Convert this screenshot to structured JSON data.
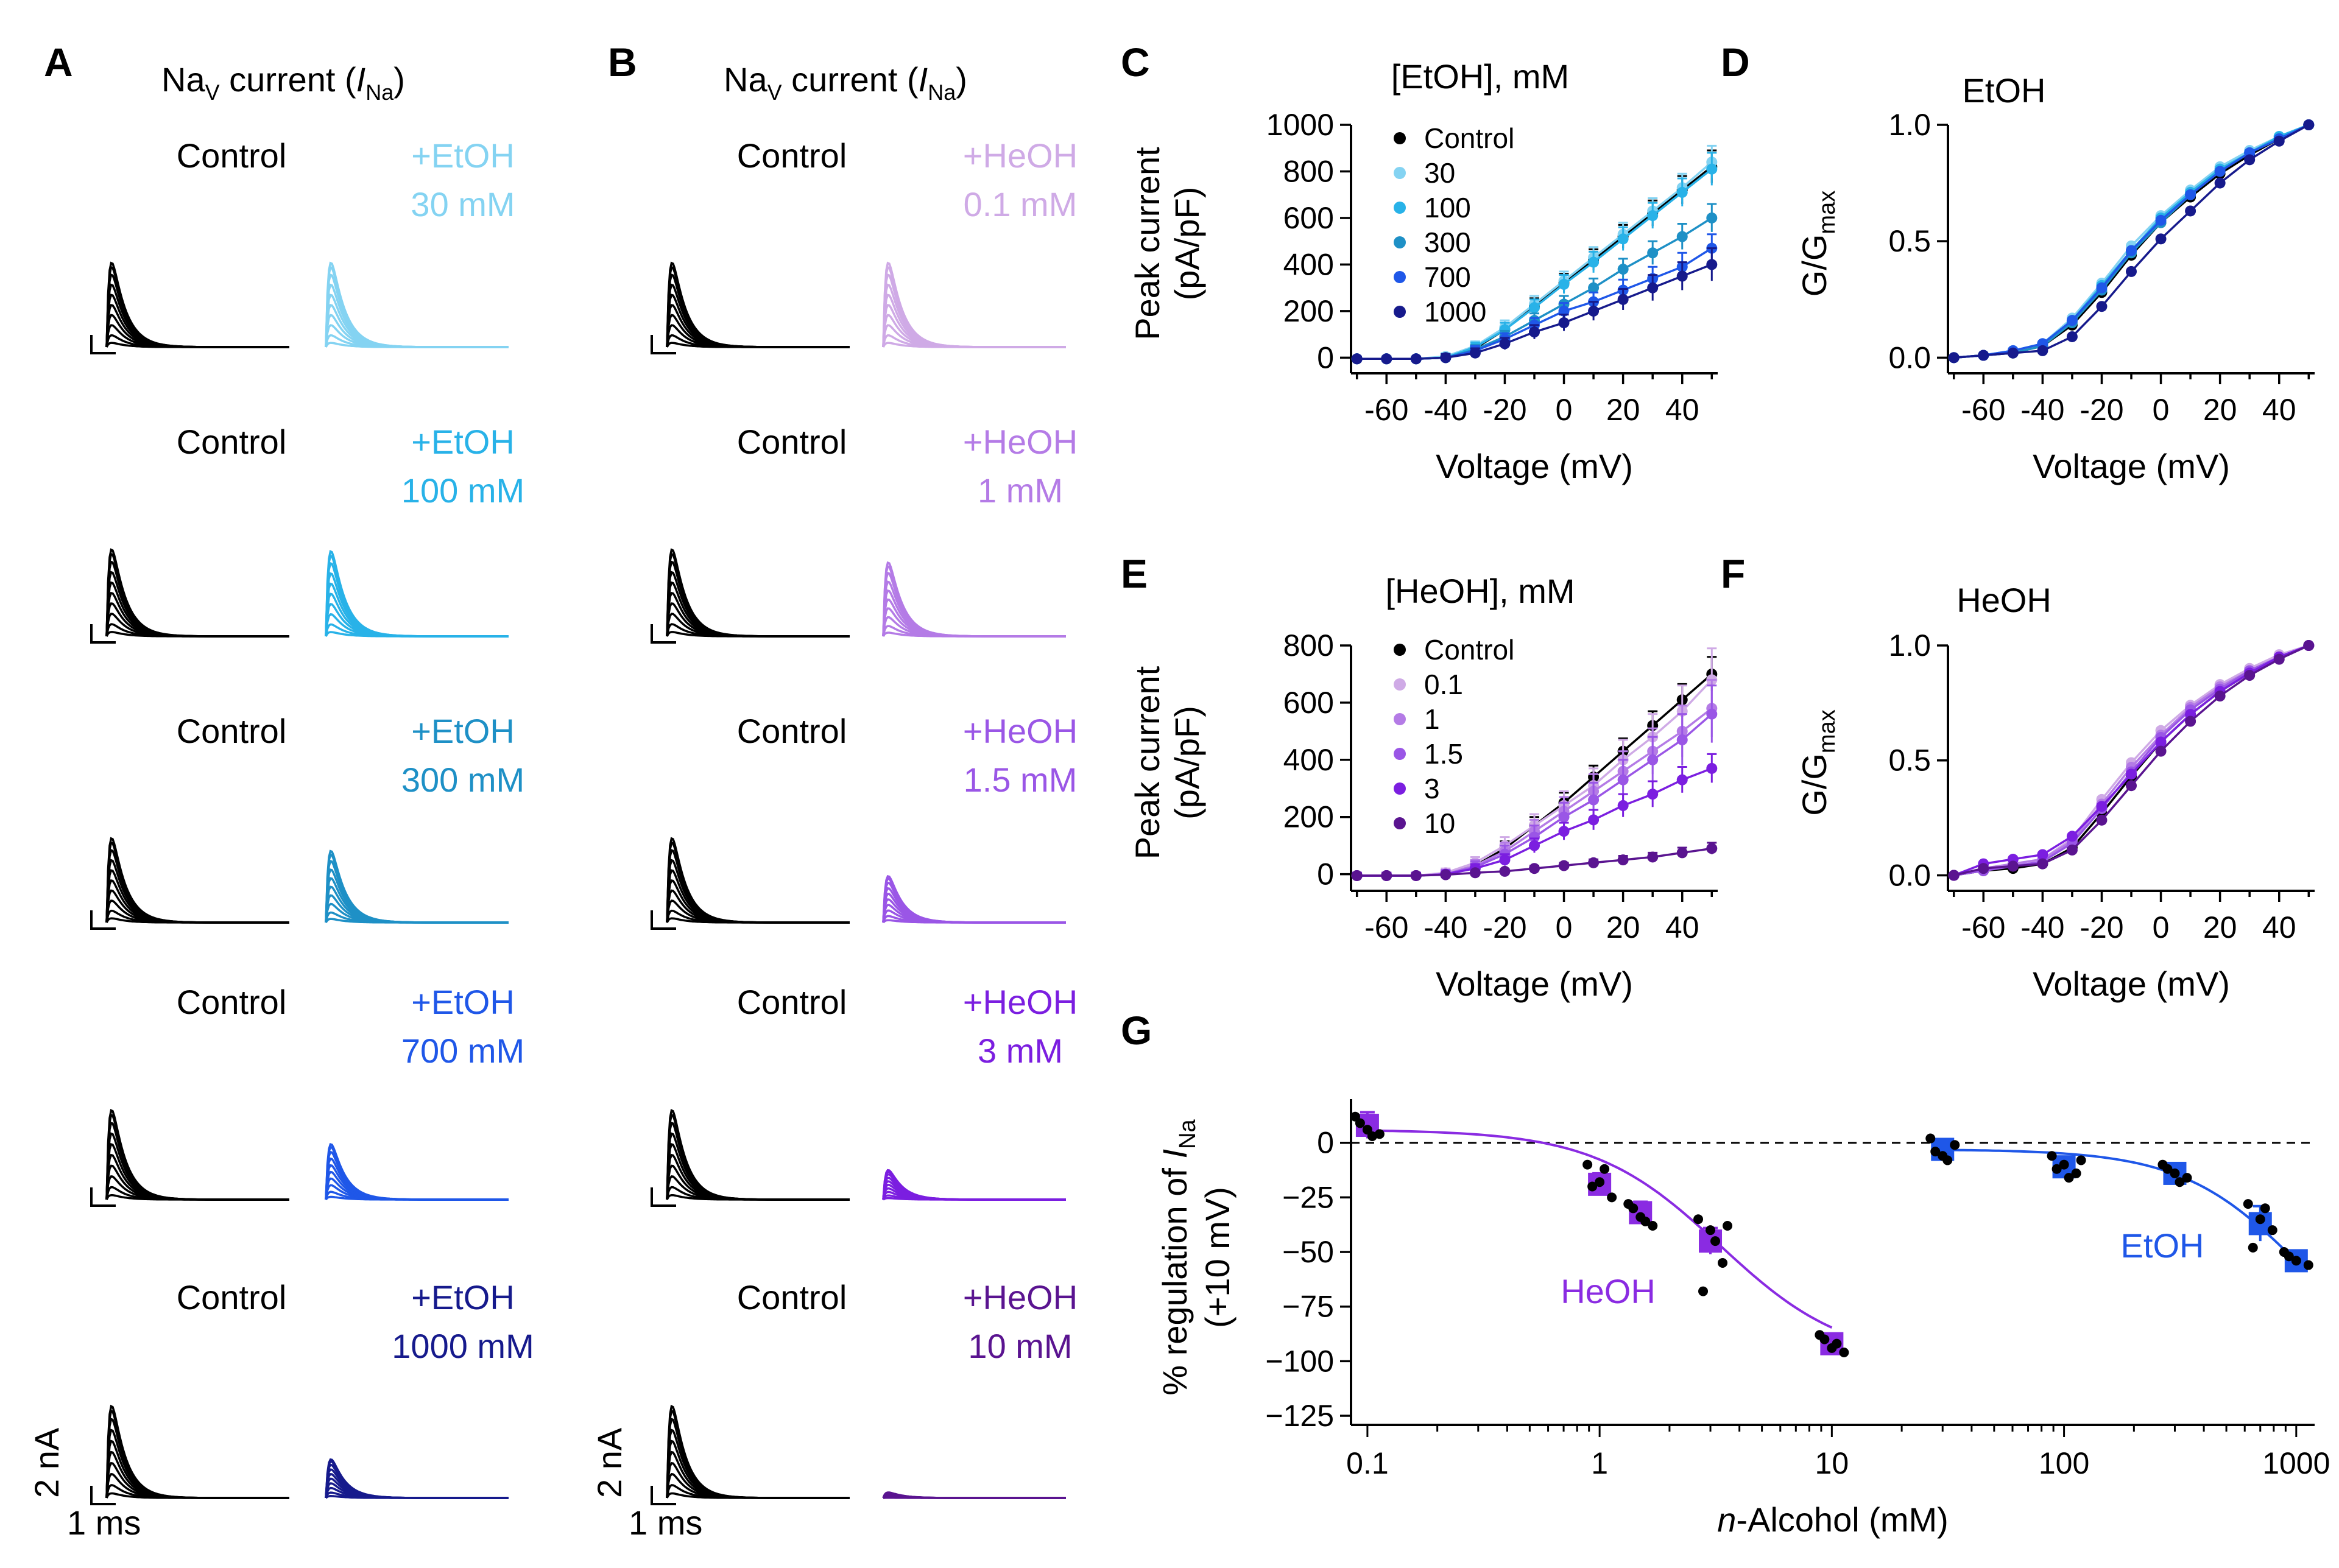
{
  "figure": {
    "colors": {
      "control": "#000000",
      "etoh": [
        "#84d3f2",
        "#28b2e8",
        "#1e90c6",
        "#1f57e8",
        "#161a8c"
      ],
      "heoh": [
        "#cfaae6",
        "#b47be6",
        "#9a56e6",
        "#7b1ee0",
        "#5a1490"
      ]
    },
    "panelA": {
      "letter": "A",
      "title_prefix": "Na",
      "title_sub": "V",
      "title_mid": " current (",
      "title_I": "I",
      "title_Isub": "Na",
      "title_end": ")",
      "control_label": "Control",
      "rows": [
        {
          "drug": "+EtOH",
          "conc": "30 mM",
          "color_index": 0,
          "scale": 1.0
        },
        {
          "drug": "+EtOH",
          "conc": "100 mM",
          "color_index": 1,
          "scale": 0.98
        },
        {
          "drug": "+EtOH",
          "conc": "300 mM",
          "color_index": 2,
          "scale": 0.85
        },
        {
          "drug": "+EtOH",
          "conc": "700 mM",
          "color_index": 3,
          "scale": 0.62
        },
        {
          "drug": "+EtOH",
          "conc": "1000 mM",
          "color_index": 4,
          "scale": 0.42
        }
      ],
      "scale_y": "2 nA",
      "scale_x": "1 ms"
    },
    "panelB": {
      "letter": "B",
      "title_prefix": "Na",
      "title_sub": "V",
      "title_mid": " current (",
      "title_I": "I",
      "title_Isub": "Na",
      "title_end": ")",
      "control_label": "Control",
      "rows": [
        {
          "drug": "+HeOH",
          "conc": "0.1 mM",
          "color_index": 0,
          "scale": 1.0
        },
        {
          "drug": "+HeOH",
          "conc": "1 mM",
          "color_index": 1,
          "scale": 0.85
        },
        {
          "drug": "+HeOH",
          "conc": "1.5 mM",
          "color_index": 2,
          "scale": 0.55
        },
        {
          "drug": "+HeOH",
          "conc": "3 mM",
          "color_index": 3,
          "scale": 0.33
        },
        {
          "drug": "+HeOH",
          "conc": "10 mM",
          "color_index": 4,
          "scale": 0.06
        }
      ],
      "scale_y": "2 nA",
      "scale_x": "1 ms"
    }
  },
  "chart_data": [
    {
      "panel": "C",
      "type": "line",
      "title": "[EtOH], mM",
      "xlabel": "Voltage (mV)",
      "ylabel": "Peak current",
      "ylabel2": "(pA/pF)",
      "x": [
        -70,
        -60,
        -50,
        -40,
        -30,
        -20,
        -10,
        0,
        10,
        20,
        30,
        40,
        50
      ],
      "xticks": [
        -60,
        -40,
        -20,
        0,
        20,
        40
      ],
      "xticklabels": [
        "-60",
        "-40",
        "-20",
        "0",
        "20",
        "40"
      ],
      "yticks": [
        0,
        200,
        400,
        600,
        800,
        1000
      ],
      "yticklabels": [
        "0",
        "200",
        "400",
        "600",
        "800",
        "1000"
      ],
      "xlim": [
        -72,
        52
      ],
      "ylim": [
        -20,
        1000
      ],
      "series": [
        {
          "name": "Control",
          "color": "#000000",
          "values": [
            -5,
            -5,
            -5,
            0,
            40,
            120,
            220,
            320,
            420,
            520,
            620,
            720,
            820
          ],
          "err": [
            10,
            10,
            10,
            15,
            20,
            30,
            35,
            40,
            45,
            50,
            55,
            60,
            70
          ]
        },
        {
          "name": "30",
          "color": "#84d3f2",
          "values": [
            -5,
            -5,
            -5,
            5,
            50,
            130,
            230,
            330,
            430,
            530,
            630,
            730,
            840
          ],
          "err": [
            10,
            10,
            10,
            15,
            20,
            30,
            35,
            40,
            45,
            50,
            55,
            60,
            70
          ]
        },
        {
          "name": "100",
          "color": "#28b2e8",
          "values": [
            -5,
            -5,
            -5,
            0,
            45,
            120,
            215,
            315,
            410,
            510,
            610,
            710,
            810
          ],
          "err": [
            10,
            10,
            10,
            15,
            20,
            30,
            35,
            40,
            45,
            50,
            55,
            60,
            70
          ]
        },
        {
          "name": "300",
          "color": "#1e90c6",
          "values": [
            -5,
            -5,
            -5,
            0,
            35,
            90,
            160,
            230,
            300,
            380,
            450,
            520,
            600
          ],
          "err": [
            10,
            10,
            10,
            15,
            20,
            25,
            30,
            35,
            40,
            45,
            50,
            55,
            60
          ]
        },
        {
          "name": "700",
          "color": "#1f57e8",
          "values": [
            -5,
            -5,
            -5,
            0,
            30,
            80,
            140,
            200,
            240,
            290,
            340,
            390,
            470
          ],
          "err": [
            10,
            10,
            10,
            15,
            20,
            25,
            30,
            35,
            40,
            45,
            50,
            60,
            60
          ]
        },
        {
          "name": "1000",
          "color": "#161a8c",
          "values": [
            -5,
            -5,
            -5,
            0,
            20,
            60,
            110,
            150,
            200,
            250,
            300,
            350,
            400
          ],
          "err": [
            10,
            10,
            10,
            15,
            20,
            25,
            30,
            35,
            40,
            45,
            55,
            60,
            70
          ]
        }
      ]
    },
    {
      "panel": "D",
      "type": "line",
      "title": "EtOH",
      "xlabel": "Voltage (mV)",
      "ylabel": "G/G",
      "ylabel_sub": "max",
      "x": [
        -70,
        -60,
        -50,
        -40,
        -30,
        -20,
        -10,
        0,
        10,
        20,
        30,
        40,
        50
      ],
      "xticks": [
        -60,
        -40,
        -20,
        0,
        20,
        40
      ],
      "xticklabels": [
        "-60",
        "-40",
        "-20",
        "0",
        "20",
        "40"
      ],
      "yticks": [
        0,
        0.5,
        1
      ],
      "yticklabels": [
        "0.0",
        "0.5",
        "1.0"
      ],
      "xlim": [
        -72,
        52
      ],
      "ylim": [
        -0.02,
        1.0
      ],
      "series": [
        {
          "name": "Control",
          "color": "#000000",
          "values": [
            0,
            0.01,
            0.02,
            0.05,
            0.14,
            0.28,
            0.44,
            0.58,
            0.69,
            0.79,
            0.87,
            0.94,
            1.0
          ]
        },
        {
          "name": "30",
          "color": "#84d3f2",
          "values": [
            0,
            0.01,
            0.03,
            0.06,
            0.17,
            0.32,
            0.48,
            0.61,
            0.72,
            0.82,
            0.89,
            0.95,
            1.0
          ]
        },
        {
          "name": "100",
          "color": "#28b2e8",
          "values": [
            0,
            0.01,
            0.03,
            0.06,
            0.16,
            0.31,
            0.46,
            0.6,
            0.71,
            0.81,
            0.88,
            0.95,
            1.0
          ]
        },
        {
          "name": "300",
          "color": "#1e90c6",
          "values": [
            0,
            0.01,
            0.02,
            0.05,
            0.15,
            0.29,
            0.45,
            0.58,
            0.7,
            0.8,
            0.88,
            0.94,
            1.0
          ]
        },
        {
          "name": "700",
          "color": "#1f57e8",
          "values": [
            0,
            0.01,
            0.03,
            0.06,
            0.16,
            0.3,
            0.46,
            0.59,
            0.7,
            0.8,
            0.88,
            0.94,
            1.0
          ]
        },
        {
          "name": "1000",
          "color": "#161a8c",
          "values": [
            0,
            0.01,
            0.02,
            0.03,
            0.09,
            0.22,
            0.37,
            0.51,
            0.63,
            0.75,
            0.85,
            0.93,
            1.0
          ]
        }
      ]
    },
    {
      "panel": "E",
      "type": "line",
      "title": "[HeOH], mM",
      "xlabel": "Voltage (mV)",
      "ylabel": "Peak current",
      "ylabel2": "(pA/pF)",
      "x": [
        -70,
        -60,
        -50,
        -40,
        -30,
        -20,
        -10,
        0,
        10,
        20,
        30,
        40,
        50
      ],
      "xticks": [
        -60,
        -40,
        -20,
        0,
        20,
        40
      ],
      "xticklabels": [
        "-60",
        "-40",
        "-20",
        "0",
        "20",
        "40"
      ],
      "yticks": [
        0,
        200,
        400,
        600,
        800
      ],
      "yticklabels": [
        "0",
        "200",
        "400",
        "600",
        "800"
      ],
      "xlim": [
        -72,
        52
      ],
      "ylim": [
        -20,
        800
      ],
      "series": [
        {
          "name": "Control",
          "color": "#000000",
          "values": [
            -5,
            -5,
            -5,
            0,
            30,
            90,
            170,
            250,
            340,
            430,
            520,
            610,
            700
          ],
          "err": [
            10,
            10,
            10,
            15,
            20,
            25,
            30,
            35,
            40,
            45,
            50,
            55,
            60
          ]
        },
        {
          "name": "0.1",
          "color": "#cfaae6",
          "values": [
            -5,
            -5,
            -5,
            5,
            40,
            100,
            170,
            240,
            310,
            400,
            480,
            570,
            680
          ],
          "err": [
            10,
            10,
            10,
            15,
            20,
            30,
            40,
            50,
            60,
            70,
            80,
            90,
            110
          ]
        },
        {
          "name": "1",
          "color": "#b47be6",
          "values": [
            -5,
            -5,
            -5,
            0,
            30,
            80,
            150,
            220,
            290,
            360,
            430,
            500,
            580
          ],
          "err": [
            10,
            10,
            10,
            15,
            20,
            30,
            40,
            50,
            60,
            70,
            80,
            90,
            100
          ]
        },
        {
          "name": "1.5",
          "color": "#9a56e6",
          "values": [
            -5,
            -5,
            -5,
            0,
            25,
            70,
            130,
            200,
            260,
            330,
            400,
            470,
            560
          ],
          "err": [
            10,
            10,
            10,
            15,
            20,
            30,
            40,
            50,
            60,
            70,
            80,
            90,
            100
          ]
        },
        {
          "name": "3",
          "color": "#7b1ee0",
          "values": [
            -5,
            -5,
            -5,
            0,
            20,
            50,
            100,
            150,
            190,
            240,
            280,
            330,
            370
          ],
          "err": [
            10,
            10,
            10,
            10,
            15,
            20,
            25,
            30,
            35,
            40,
            45,
            45,
            50
          ]
        },
        {
          "name": "10",
          "color": "#5a1490",
          "values": [
            -5,
            -5,
            -5,
            -2,
            5,
            10,
            20,
            30,
            40,
            50,
            60,
            75,
            90
          ],
          "err": [
            5,
            5,
            5,
            5,
            5,
            8,
            10,
            10,
            12,
            14,
            15,
            18,
            20
          ]
        }
      ]
    },
    {
      "panel": "F",
      "type": "line",
      "title": "HeOH",
      "xlabel": "Voltage (mV)",
      "ylabel": "G/G",
      "ylabel_sub": "max",
      "x": [
        -70,
        -60,
        -50,
        -40,
        -30,
        -20,
        -10,
        0,
        10,
        20,
        30,
        40,
        50
      ],
      "xticks": [
        -60,
        -40,
        -20,
        0,
        20,
        40
      ],
      "xticklabels": [
        "-60",
        "-40",
        "-20",
        "0",
        "20",
        "40"
      ],
      "yticks": [
        0,
        0.5,
        1
      ],
      "yticklabels": [
        "0.0",
        "0.5",
        "1.0"
      ],
      "xlim": [
        -72,
        52
      ],
      "ylim": [
        -0.02,
        1.0
      ],
      "series": [
        {
          "name": "Control",
          "color": "#000000",
          "values": [
            0,
            0.02,
            0.03,
            0.05,
            0.12,
            0.27,
            0.43,
            0.58,
            0.7,
            0.8,
            0.88,
            0.95,
            1.0
          ]
        },
        {
          "name": "0.1",
          "color": "#cfaae6",
          "values": [
            0,
            0.03,
            0.05,
            0.07,
            0.16,
            0.33,
            0.49,
            0.63,
            0.74,
            0.83,
            0.9,
            0.96,
            1.0
          ]
        },
        {
          "name": "1",
          "color": "#b47be6",
          "values": [
            0,
            0.03,
            0.05,
            0.07,
            0.15,
            0.31,
            0.47,
            0.61,
            0.73,
            0.82,
            0.89,
            0.95,
            1.0
          ]
        },
        {
          "name": "1.5",
          "color": "#9a56e6",
          "values": [
            0,
            0.02,
            0.04,
            0.06,
            0.14,
            0.29,
            0.45,
            0.6,
            0.72,
            0.81,
            0.89,
            0.95,
            1.0
          ]
        },
        {
          "name": "3",
          "color": "#7b1ee0",
          "values": [
            0,
            0.05,
            0.07,
            0.09,
            0.17,
            0.3,
            0.44,
            0.58,
            0.7,
            0.8,
            0.88,
            0.95,
            1.0
          ]
        },
        {
          "name": "10",
          "color": "#5a1490",
          "values": [
            0,
            0.03,
            0.04,
            0.05,
            0.11,
            0.24,
            0.39,
            0.54,
            0.67,
            0.78,
            0.87,
            0.94,
            1.0
          ]
        }
      ]
    },
    {
      "panel": "G",
      "type": "scatter",
      "xlabel_italic": "n",
      "xlabel_rest": "-Alcohol (mM)",
      "ylabel_a": "% regulation of ",
      "ylabel_I": "I",
      "ylabel_Isub": "Na",
      "ylabel2": "(+10 mV)",
      "xscale": "log",
      "xlim": [
        0.085,
        1200
      ],
      "ylim": [
        -125,
        20
      ],
      "xticks": [
        0.1,
        1,
        10,
        100,
        1000
      ],
      "xticklabels": [
        "0.1",
        "1",
        "10",
        "100",
        "1000"
      ],
      "yticks": [
        0,
        -25,
        -50,
        -75,
        -100,
        -125
      ],
      "yticklabels": [
        "0",
        "−25",
        "−50",
        "−75",
        "−100",
        "−125"
      ],
      "series": [
        {
          "name": "HeOH",
          "color": "#8a2be2",
          "x": [
            0.1,
            1,
            1.5,
            3,
            10
          ],
          "mean": [
            8,
            -19,
            -32,
            -45,
            -92
          ],
          "err": [
            6,
            5,
            5,
            6,
            4
          ],
          "points": [
            [
              12,
              6,
              4,
              9,
              3
            ],
            [
              -10,
              -18,
              -25,
              -20,
              -12
            ],
            [
              -28,
              -34,
              -38,
              -30,
              -36
            ],
            [
              -35,
              -40,
              -55,
              -68,
              -45,
              -38
            ],
            [
              -88,
              -94,
              -96,
              -90,
              -92
            ]
          ],
          "fit": {
            "ic50": 3.3,
            "n": 1.6,
            "top": 6,
            "bottom": -100
          }
        },
        {
          "name": "EtOH",
          "color": "#1f57e8",
          "x": [
            30,
            100,
            300,
            700,
            1000
          ],
          "mean": [
            -3,
            -11,
            -14,
            -37,
            -54
          ],
          "err": [
            3,
            4,
            3,
            8,
            3
          ],
          "points": [
            [
              2,
              -6,
              -1,
              -4,
              -8
            ],
            [
              -6,
              -10,
              -14,
              -12,
              -16,
              -8
            ],
            [
              -10,
              -14,
              -16,
              -12,
              -18
            ],
            [
              -28,
              -35,
              -40,
              -48,
              -30
            ],
            [
              -50,
              -54,
              -56,
              -52
            ]
          ],
          "fit": {
            "ic50": 1050,
            "n": 1.7,
            "top": -3,
            "bottom": -110
          }
        }
      ]
    }
  ],
  "legends": {
    "etoh_labels": [
      "Control",
      "30",
      "100",
      "300",
      "700",
      "1000"
    ],
    "heoh_labels": [
      "Control",
      "0.1",
      "1",
      "1.5",
      "3",
      "10"
    ]
  }
}
